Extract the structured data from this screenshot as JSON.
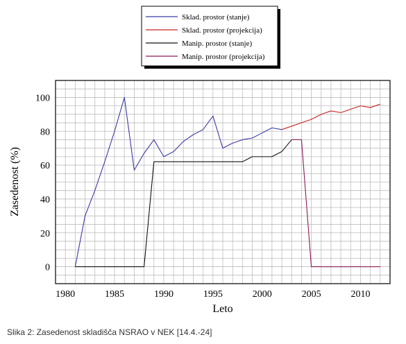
{
  "caption": "Slika 2: Zasedenost skladišča NSRAO v NEK [14.4.-24]",
  "chart_data": {
    "type": "line",
    "xlabel": "Leto",
    "ylabel": "Zasedenost (%)",
    "xlim": [
      1979,
      2013
    ],
    "ylim": [
      -10,
      110
    ],
    "x_ticks": [
      1980,
      1985,
      1990,
      1995,
      2000,
      2005,
      2010
    ],
    "y_ticks": [
      0,
      20,
      40,
      60,
      80,
      100
    ],
    "grid": true,
    "legend_position": "top-center",
    "series": [
      {
        "name": "Sklad. prostor (stanje)",
        "color": "#3a3aa8",
        "points": [
          [
            1981,
            0
          ],
          [
            1982,
            30
          ],
          [
            1983,
            45
          ],
          [
            1984,
            62
          ],
          [
            1985,
            80
          ],
          [
            1986,
            100
          ],
          [
            1987,
            57
          ],
          [
            1988,
            67
          ],
          [
            1989,
            75
          ],
          [
            1990,
            65
          ],
          [
            1991,
            68
          ],
          [
            1992,
            74
          ],
          [
            1993,
            78
          ],
          [
            1994,
            81
          ],
          [
            1995,
            89
          ],
          [
            1996,
            70
          ],
          [
            1997,
            73
          ],
          [
            1998,
            75
          ],
          [
            1999,
            76
          ],
          [
            2000,
            79
          ],
          [
            2001,
            82
          ],
          [
            2002,
            81
          ]
        ]
      },
      {
        "name": "Sklad. prostor (projekcija)",
        "color": "#cc2020",
        "points": [
          [
            2002,
            81
          ],
          [
            2003,
            83
          ],
          [
            2004,
            85
          ],
          [
            2005,
            87
          ],
          [
            2006,
            90
          ],
          [
            2007,
            92
          ],
          [
            2008,
            91
          ],
          [
            2009,
            93
          ],
          [
            2010,
            95
          ],
          [
            2011,
            94
          ],
          [
            2012,
            96
          ]
        ]
      },
      {
        "name": "Manip. prostor (stanje)",
        "color": "#111111",
        "points": [
          [
            1981,
            0
          ],
          [
            1988,
            0
          ],
          [
            1989,
            62
          ],
          [
            1998,
            62
          ],
          [
            1999,
            65
          ],
          [
            2001,
            65
          ],
          [
            2002,
            68
          ],
          [
            2003,
            75
          ]
        ]
      },
      {
        "name": "Manip. prostor (projekcija)",
        "color": "#8b1a55",
        "points": [
          [
            2003,
            75
          ],
          [
            2004,
            75
          ],
          [
            2005,
            0
          ],
          [
            2012,
            0
          ]
        ]
      }
    ]
  }
}
